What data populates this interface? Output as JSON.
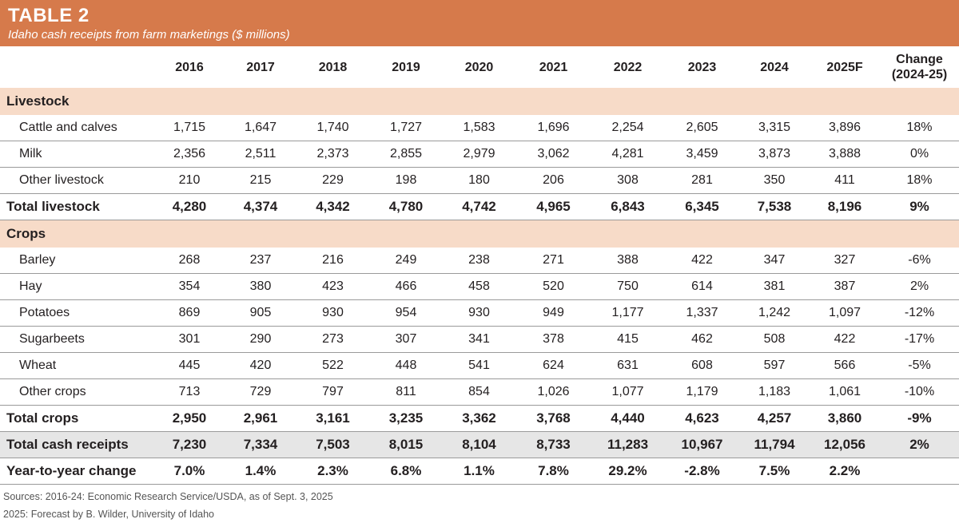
{
  "header": {
    "title": "TABLE 2",
    "subtitle": "Idaho cash receipts from farm marketings ($ millions)"
  },
  "columns": [
    "2016",
    "2017",
    "2018",
    "2019",
    "2020",
    "2021",
    "2022",
    "2023",
    "2024",
    "2025F",
    "Change",
    "(2024-25)"
  ],
  "livestock": {
    "heading": "Livestock",
    "rows": [
      {
        "label": "Cattle and calves",
        "values": [
          "1,715",
          "1,647",
          "1,740",
          "1,727",
          "1,583",
          "1,696",
          "2,254",
          "2,605",
          "3,315",
          "3,896",
          "18%"
        ]
      },
      {
        "label": "Milk",
        "values": [
          "2,356",
          "2,511",
          "2,373",
          "2,855",
          "2,979",
          "3,062",
          "4,281",
          "3,459",
          "3,873",
          "3,888",
          "0%"
        ]
      },
      {
        "label": "Other livestock",
        "values": [
          "210",
          "215",
          "229",
          "198",
          "180",
          "206",
          "308",
          "281",
          "350",
          "411",
          "18%"
        ]
      }
    ],
    "total": {
      "label": "Total livestock",
      "values": [
        "4,280",
        "4,374",
        "4,342",
        "4,780",
        "4,742",
        "4,965",
        "6,843",
        "6,345",
        "7,538",
        "8,196",
        "9%"
      ]
    }
  },
  "crops": {
    "heading": "Crops",
    "rows": [
      {
        "label": "Barley",
        "values": [
          "268",
          "237",
          "216",
          "249",
          "238",
          "271",
          "388",
          "422",
          "347",
          "327",
          "-6%"
        ]
      },
      {
        "label": "Hay",
        "values": [
          "354",
          "380",
          "423",
          "466",
          "458",
          "520",
          "750",
          "614",
          "381",
          "387",
          "2%"
        ]
      },
      {
        "label": "Potatoes",
        "values": [
          "869",
          "905",
          "930",
          "954",
          "930",
          "949",
          "1,177",
          "1,337",
          "1,242",
          "1,097",
          "-12%"
        ]
      },
      {
        "label": "Sugarbeets",
        "values": [
          "301",
          "290",
          "273",
          "307",
          "341",
          "378",
          "415",
          "462",
          "508",
          "422",
          "-17%"
        ]
      },
      {
        "label": "Wheat",
        "values": [
          "445",
          "420",
          "522",
          "448",
          "541",
          "624",
          "631",
          "608",
          "597",
          "566",
          "-5%"
        ]
      },
      {
        "label": "Other crops",
        "values": [
          "713",
          "729",
          "797",
          "811",
          "854",
          "1,026",
          "1,077",
          "1,179",
          "1,183",
          "1,061",
          "-10%"
        ]
      }
    ],
    "total": {
      "label": "Total crops",
      "values": [
        "2,950",
        "2,961",
        "3,161",
        "3,235",
        "3,362",
        "3,768",
        "4,440",
        "4,623",
        "4,257",
        "3,860",
        "-9%"
      ]
    }
  },
  "total_cash": {
    "label": "Total cash receipts",
    "values": [
      "7,230",
      "7,334",
      "7,503",
      "8,015",
      "8,104",
      "8,733",
      "11,283",
      "10,967",
      "11,794",
      "12,056",
      "2%"
    ]
  },
  "yoy": {
    "label": "Year-to-year change",
    "values": [
      "7.0%",
      "1.4%",
      "2.3%",
      "6.8%",
      "1.1%",
      "7.8%",
      "29.2%",
      "-2.8%",
      "7.5%",
      "2.2%",
      ""
    ]
  },
  "sources": [
    "Sources: 2016-24: Economic Research Service/USDA, as of Sept. 3, 2025",
    "2025: Forecast by B. Wilder, University of Idaho"
  ],
  "colors": {
    "accent": "#d67a4b",
    "section_bg": "#f7dbc8",
    "grand_bg": "#e6e6e6"
  }
}
